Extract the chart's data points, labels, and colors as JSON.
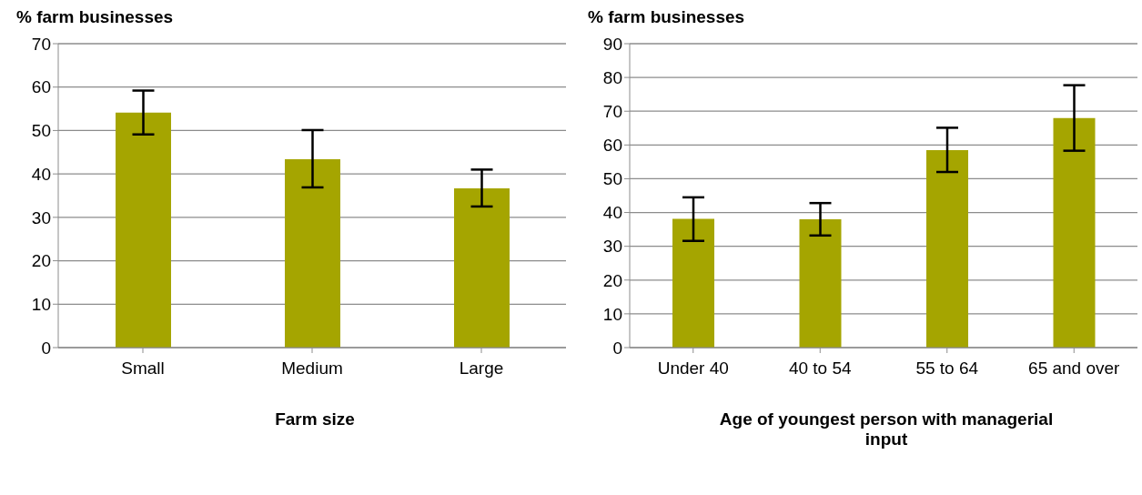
{
  "chart_data": [
    {
      "type": "bar",
      "ylabel": "% farm businesses",
      "xlabel": "Farm size",
      "categories": [
        "Small",
        "Medium",
        "Large"
      ],
      "values": [
        54.1,
        43.4,
        36.7
      ],
      "errors": [
        [
          49.1,
          59.2
        ],
        [
          36.9,
          50.1
        ],
        [
          32.5,
          41.0
        ]
      ],
      "color": "#a5a500",
      "ylim": [
        0,
        70
      ],
      "yticks": [
        0,
        10,
        20,
        30,
        40,
        50,
        60,
        70
      ],
      "grid": "y",
      "legend": false
    },
    {
      "type": "bar",
      "ylabel": "% farm businesses",
      "xlabel": "Age of youngest person with managerial input",
      "categories": [
        "Under 40",
        "40 to 54",
        "55 to 64",
        "65 and over"
      ],
      "values": [
        38.1,
        38.0,
        58.5,
        68.0
      ],
      "errors": [
        [
          31.6,
          44.5
        ],
        [
          33.2,
          42.8
        ],
        [
          52.0,
          65.1
        ],
        [
          58.3,
          77.7
        ]
      ],
      "color": "#a5a500",
      "ylim": [
        0,
        90
      ],
      "yticks": [
        0,
        10,
        20,
        30,
        40,
        50,
        60,
        70,
        80,
        90
      ],
      "grid": "y",
      "legend": false
    }
  ]
}
